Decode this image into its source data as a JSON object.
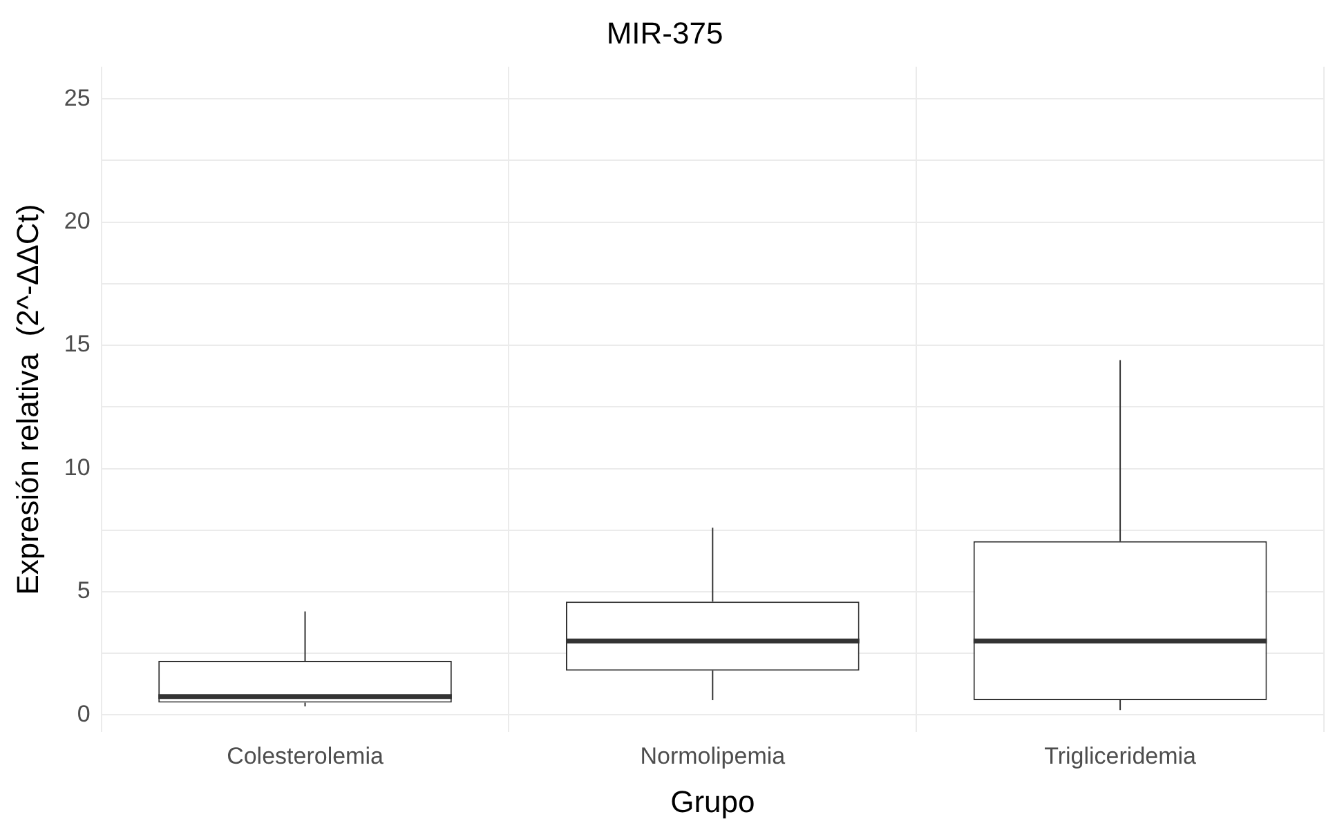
{
  "chart_data": {
    "type": "box",
    "title": "MIR-375",
    "xlabel": "Grupo",
    "ylabel": "Expresión relativa  (2^-ΔΔCt)",
    "categories": [
      "Colesterolemia",
      "Normolipemia",
      "Trigliceridemia"
    ],
    "boxes": [
      {
        "low": 0.35,
        "q1": 0.5,
        "median": 0.75,
        "q3": 2.2,
        "high": 4.2
      },
      {
        "low": 0.6,
        "q1": 1.8,
        "median": 3.0,
        "q3": 4.6,
        "high": 7.6
      },
      {
        "low": 0.2,
        "q1": 0.6,
        "median": 3.0,
        "q3": 7.05,
        "high": 14.4
      }
    ],
    "ylim": [
      -0.7,
      26.3
    ],
    "yticks": [
      0,
      {
        "value": 2.5,
        "label": null
      },
      5,
      {
        "value": 7.5,
        "label": null
      },
      10,
      {
        "value": 12.5,
        "label": null
      },
      15,
      {
        "value": 17.5,
        "label": null
      },
      20,
      {
        "value": 22.5,
        "label": null
      },
      25
    ],
    "grid": true
  }
}
